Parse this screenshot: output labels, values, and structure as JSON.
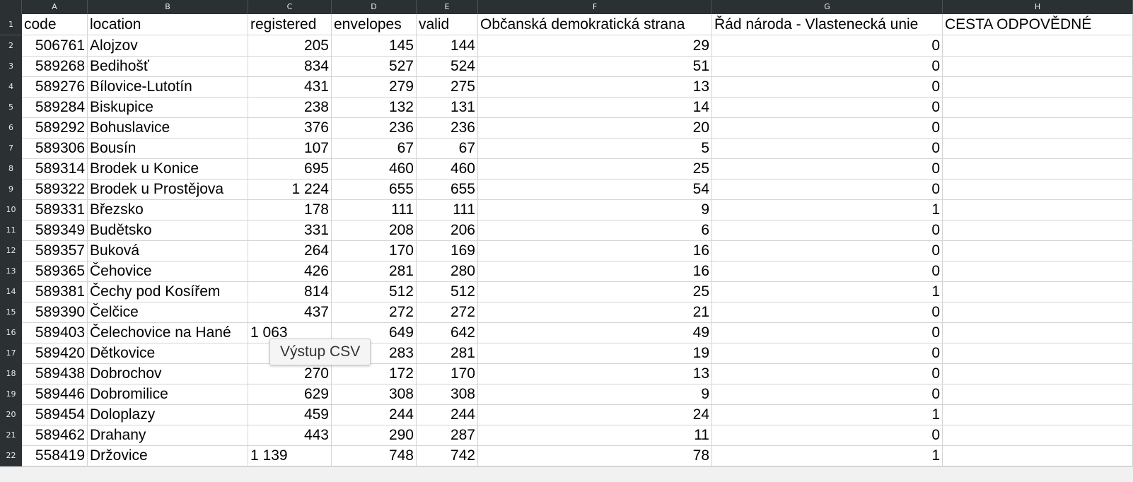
{
  "columns": [
    "A",
    "B",
    "C",
    "D",
    "E",
    "F",
    "G",
    "H"
  ],
  "header": [
    "code",
    "location",
    "registered",
    "envelopes",
    "valid",
    "Občanská demokratická strana",
    "Řád národa - Vlastenecká unie",
    "CESTA ODPOVĚDNÉ"
  ],
  "rows": [
    {
      "num": "2",
      "cells": [
        "506761",
        "Alojzov",
        "205",
        "145",
        "144",
        "29",
        "0",
        ""
      ]
    },
    {
      "num": "3",
      "cells": [
        "589268",
        "Bedihošť",
        "834",
        "527",
        "524",
        "51",
        "0",
        ""
      ]
    },
    {
      "num": "4",
      "cells": [
        "589276",
        "Bílovice-Lutotín",
        "431",
        "279",
        "275",
        "13",
        "0",
        ""
      ]
    },
    {
      "num": "5",
      "cells": [
        "589284",
        "Biskupice",
        "238",
        "132",
        "131",
        "14",
        "0",
        ""
      ]
    },
    {
      "num": "6",
      "cells": [
        "589292",
        "Bohuslavice",
        "376",
        "236",
        "236",
        "20",
        "0",
        ""
      ]
    },
    {
      "num": "7",
      "cells": [
        "589306",
        "Bousín",
        "107",
        "67",
        "67",
        "5",
        "0",
        ""
      ]
    },
    {
      "num": "8",
      "cells": [
        "589314",
        "Brodek u Konice",
        "695",
        "460",
        "460",
        "25",
        "0",
        ""
      ]
    },
    {
      "num": "9",
      "cells": [
        "589322",
        "Brodek u Prostějova",
        "1 224",
        "655",
        "655",
        "54",
        "0",
        ""
      ]
    },
    {
      "num": "10",
      "cells": [
        "589331",
        "Březsko",
        "178",
        "111",
        "111",
        "9",
        "1",
        ""
      ]
    },
    {
      "num": "11",
      "cells": [
        "589349",
        "Budětsko",
        "331",
        "208",
        "206",
        "6",
        "0",
        ""
      ]
    },
    {
      "num": "12",
      "cells": [
        "589357",
        "Buková",
        "264",
        "170",
        "169",
        "16",
        "0",
        ""
      ]
    },
    {
      "num": "13",
      "cells": [
        "589365",
        "Čehovice",
        "426",
        "281",
        "280",
        "16",
        "0",
        ""
      ]
    },
    {
      "num": "14",
      "cells": [
        "589381",
        "Čechy pod Kosířem",
        "814",
        "512",
        "512",
        "25",
        "1",
        ""
      ]
    },
    {
      "num": "15",
      "cells": [
        "589390",
        "Čelčice",
        "437",
        "272",
        "272",
        "21",
        "0",
        ""
      ]
    },
    {
      "num": "16",
      "cells": [
        "589403",
        "Čelechovice na Hané",
        "1 063",
        "649",
        "642",
        "49",
        "0",
        ""
      ]
    },
    {
      "num": "17",
      "cells": [
        "589420",
        "Dětkovice",
        "",
        "283",
        "281",
        "19",
        "0",
        ""
      ]
    },
    {
      "num": "18",
      "cells": [
        "589438",
        "Dobrochov",
        "270",
        "172",
        "170",
        "13",
        "0",
        ""
      ]
    },
    {
      "num": "19",
      "cells": [
        "589446",
        "Dobromilice",
        "629",
        "308",
        "308",
        "9",
        "0",
        ""
      ]
    },
    {
      "num": "20",
      "cells": [
        "589454",
        "Doloplazy",
        "459",
        "244",
        "244",
        "24",
        "1",
        ""
      ]
    },
    {
      "num": "21",
      "cells": [
        "589462",
        "Drahany",
        "443",
        "290",
        "287",
        "11",
        "0",
        ""
      ]
    },
    {
      "num": "22",
      "cells": [
        "558419",
        "Držovice",
        "1 139",
        "748",
        "742",
        "78",
        "1",
        ""
      ]
    }
  ],
  "tooltip": "Výstup CSV"
}
